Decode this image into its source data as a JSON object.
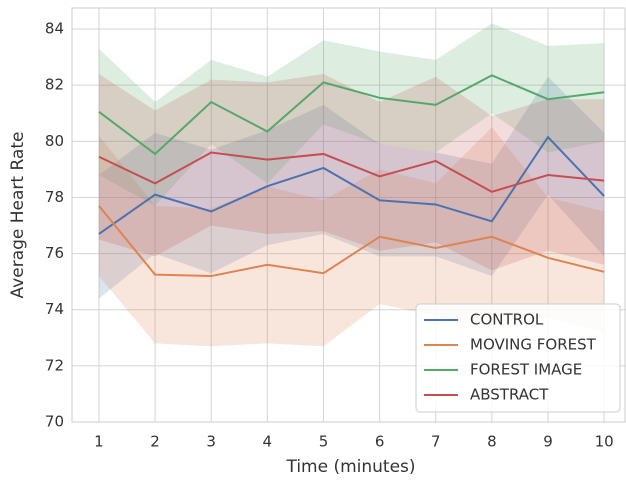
{
  "chart_data": {
    "type": "line",
    "x_label": "Time (minutes)",
    "y_label": "Average Heart Rate",
    "x": [
      1,
      2,
      3,
      4,
      5,
      6,
      7,
      8,
      9,
      10
    ],
    "series": [
      {
        "name": "CONTROL",
        "color": "#4c72b0",
        "values": [
          76.7,
          78.1,
          77.5,
          78.4,
          79.05,
          77.9,
          77.75,
          77.15,
          80.15,
          78.05
        ],
        "lower": [
          74.4,
          76.0,
          75.3,
          76.3,
          76.7,
          75.9,
          75.9,
          75.2,
          78.1,
          75.9
        ],
        "upper": [
          78.8,
          80.3,
          79.7,
          80.4,
          81.3,
          79.9,
          79.6,
          79.2,
          82.3,
          80.3
        ]
      },
      {
        "name": "MOVING FOREST",
        "color": "#dd8452",
        "values": [
          77.7,
          75.25,
          75.2,
          75.6,
          75.3,
          76.6,
          76.2,
          76.6,
          75.85,
          75.35
        ],
        "lower": [
          75.2,
          72.8,
          72.7,
          72.8,
          72.7,
          74.2,
          73.8,
          73.3,
          73.7,
          73.2
        ],
        "upper": [
          80.2,
          77.7,
          77.6,
          78.4,
          77.9,
          79.0,
          78.5,
          80.5,
          78.0,
          77.5
        ]
      },
      {
        "name": "FOREST IMAGE",
        "color": "#55a868",
        "values": [
          81.05,
          79.55,
          81.4,
          80.35,
          82.1,
          81.55,
          81.3,
          82.35,
          81.5,
          81.75
        ],
        "lower": [
          78.8,
          77.7,
          79.9,
          78.5,
          80.6,
          79.9,
          79.6,
          81.0,
          79.6,
          80.0
        ],
        "upper": [
          83.3,
          81.4,
          82.9,
          82.3,
          83.6,
          83.2,
          82.9,
          84.2,
          83.4,
          83.5
        ]
      },
      {
        "name": "ABSTRACT",
        "color": "#c44e52",
        "values": [
          79.45,
          78.5,
          79.6,
          79.35,
          79.55,
          78.75,
          79.3,
          78.2,
          78.8,
          78.6
        ],
        "lower": [
          76.5,
          75.9,
          77.0,
          76.7,
          76.8,
          76.1,
          76.4,
          75.4,
          76.1,
          75.6
        ],
        "upper": [
          82.4,
          81.1,
          82.2,
          82.1,
          82.4,
          81.4,
          82.3,
          80.9,
          81.5,
          81.5
        ]
      }
    ],
    "xlim": [
      0.52,
      10.39
    ],
    "ylim": [
      70,
      84.75
    ],
    "xticks": [
      1,
      2,
      3,
      4,
      5,
      6,
      7,
      8,
      9,
      10
    ],
    "yticks": [
      70,
      72,
      74,
      76,
      78,
      80,
      82,
      84
    ],
    "grid": true,
    "legend": "lower right"
  }
}
